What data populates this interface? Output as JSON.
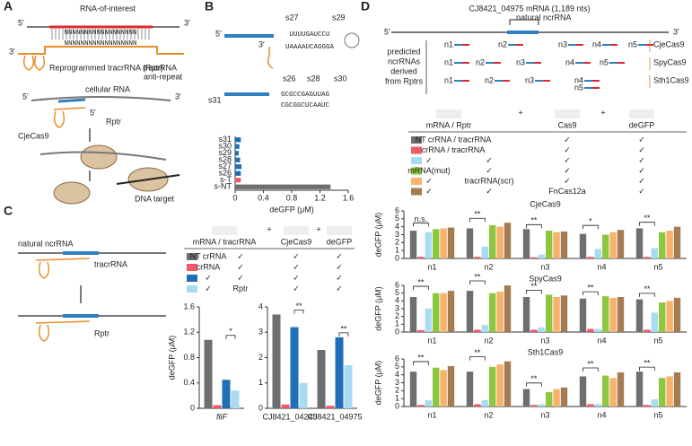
{
  "panel_a": {
    "label": "A",
    "rna": "RNA-of-interest",
    "p5": "5′",
    "p3": "3′",
    "seq_top": "NNNNNNNNNNNNNNNNNN",
    "seq_bot": "NNNNNNNNNNNNNNNNNN",
    "rptr_long": "Reprogrammed tracrRNA (Rptr)",
    "anti1": "tracrRNA",
    "anti2": "anti-repeat",
    "cellular": "cellular RNA",
    "rptr": "Rptr",
    "cas": "CjeCas9",
    "dna": "DNA target"
  },
  "panel_b": {
    "label": "B",
    "p5": "5′",
    "p3": "3′",
    "seq1": "UUUUGAUCCU",
    "seq2": "UAAAAUCAGGGA",
    "seq3": "GCGCCGAGUUAG",
    "seq4": "CGCGGCUCAAUC",
    "names": [
      "s27",
      "s29",
      "s26",
      "s28",
      "s30",
      "s31"
    ]
  },
  "panel_c": {
    "label": "C",
    "natural": "natural ncrRNA",
    "tracr": "tracrRNA",
    "rptr": "Rptr",
    "plus": "+",
    "columns": {
      "mrna": "mRNA / tracrRNA",
      "cas": "CjeCas9",
      "degfp": "deGFP"
    },
    "rows": [
      {
        "color": "#6d6e70",
        "rna": "NT crRNA",
        "tracr": "✓",
        "cas": "✓",
        "degfp": "✓"
      },
      {
        "color": "#ee5a66",
        "rna": "crRNA",
        "tracr": "✓",
        "cas": "✓",
        "degfp": "✓"
      },
      {
        "color": "#1f6fb8",
        "rna": "✓",
        "tracr": "✓",
        "cas": "✓",
        "degfp": "✓"
      },
      {
        "color": "#a9dbf2",
        "rna": "✓",
        "tracr": "Rptr",
        "cas": "✓",
        "degfp": "✓"
      }
    ]
  },
  "panel_d": {
    "label": "D",
    "gene": "CJ8421_04975 mRNA (1,189 nts)",
    "natural": "natural ncrRNA",
    "p5": "5′",
    "p3": "3′",
    "predicted": [
      "predicted",
      "ncrRNAs",
      "derived",
      "from Rptrs"
    ],
    "tracks": [
      {
        "name": "CjeCas9",
        "items": [
          "n1",
          "n2",
          "n3",
          "n4",
          "n5"
        ]
      },
      {
        "name": "SpyCas9",
        "items": [
          "n1",
          "n2",
          "n3",
          "n4",
          "n5"
        ]
      },
      {
        "name": "Sth1Cas9",
        "items": [
          "n1",
          "n2",
          "n3",
          "n4",
          "n5"
        ]
      }
    ],
    "plus": "+",
    "columns": {
      "mrna": "mRNA / Rptr",
      "cas": "Cas9",
      "degfp": "deGFP"
    },
    "rows": [
      {
        "color": "#6d6e70",
        "pair": "NT crRNA / tracrRNA",
        "cas": "✓",
        "degfp": "✓"
      },
      {
        "color": "#ee5a66",
        "pair": "crRNA / tracrRNA",
        "cas": "✓",
        "degfp": "✓"
      },
      {
        "color": "#a9dbf2",
        "mrna": "✓",
        "rptr": "✓",
        "cas": "✓",
        "degfp": "✓"
      },
      {
        "color": "#8dc63f",
        "mrna": "mRNA(mut)",
        "rptr": "✓",
        "cas": "✓",
        "degfp": "✓"
      },
      {
        "color": "#f7b26b",
        "mrna": "✓",
        "rptr": "tracrRNA(scr)",
        "cas": "✓",
        "degfp": "✓"
      },
      {
        "color": "#a57c52",
        "mrna": "✓",
        "rptr": "✓",
        "cas": "FnCas12a",
        "degfp": "✓"
      }
    ]
  },
  "chart_data": [
    {
      "type": "hbar",
      "categories": [
        "s31",
        "s30",
        "s29",
        "s28",
        "s27",
        "s26",
        "s-T",
        "s-NT"
      ],
      "values": [
        0.08,
        0.06,
        0.05,
        0.07,
        0.09,
        0.08,
        0.08,
        1.35
      ],
      "colors": [
        "#1f6fb8",
        "#1f6fb8",
        "#1f6fb8",
        "#1f6fb8",
        "#1f6fb8",
        "#1f6fb8",
        "#ee5a66",
        "#6d6e70"
      ],
      "xlim": [
        0,
        1.6
      ],
      "xticks": [
        0,
        0.4,
        0.8,
        1.2,
        1.6
      ],
      "xlabel": "deGFP (μM)"
    },
    {
      "type": "bar",
      "categories": [
        "fliF"
      ],
      "series": [
        {
          "name": "NT crRNA",
          "color": "#6d6e70",
          "values": [
            1.08
          ]
        },
        {
          "name": "crRNA",
          "color": "#ee5a66",
          "values": [
            0.05
          ]
        },
        {
          "color": "#1f6fb8",
          "values": [
            0.45
          ]
        },
        {
          "name": "Rptr",
          "color": "#a9dbf2",
          "values": [
            0.28
          ]
        }
      ],
      "ylim": [
        0,
        1.6
      ],
      "yticks": [
        0,
        0.4,
        0.8,
        1.2,
        1.6
      ],
      "ylabel": "deGFP (μM)",
      "significance": [
        "*"
      ]
    },
    {
      "type": "bar",
      "categories": [
        "CJ8421_04245",
        "CJ8421_04975"
      ],
      "series": [
        {
          "name": "NT crRNA",
          "color": "#6d6e70",
          "values": [
            3.7,
            2.3
          ]
        },
        {
          "name": "crRNA",
          "color": "#ee5a66",
          "values": [
            0.15,
            0.1
          ]
        },
        {
          "color": "#1f6fb8",
          "values": [
            3.2,
            2.8
          ]
        },
        {
          "name": "Rptr",
          "color": "#a9dbf2",
          "values": [
            1.0,
            1.7
          ]
        }
      ],
      "ylim": [
        0,
        4
      ],
      "yticks": [
        0,
        1,
        2,
        3,
        4
      ],
      "significance": [
        "**",
        "**"
      ]
    },
    {
      "type": "bar",
      "title": "CjeCas9",
      "title_color": "#c98a3a",
      "categories": [
        "n1",
        "n2",
        "n3",
        "n4",
        "n5"
      ],
      "series": [
        {
          "color": "#6d6e70",
          "values": [
            3.5,
            3.8,
            3.7,
            3.1,
            3.8
          ]
        },
        {
          "color": "#ee5a66",
          "values": [
            0.2,
            0.2,
            0.15,
            0.2,
            0.2
          ]
        },
        {
          "color": "#a9dbf2",
          "values": [
            3.3,
            1.5,
            0.5,
            1.2,
            1.3
          ]
        },
        {
          "color": "#8dc63f",
          "values": [
            3.7,
            4.2,
            3.5,
            3.0,
            3.3
          ]
        },
        {
          "color": "#f7b26b",
          "values": [
            3.8,
            4.0,
            3.3,
            3.3,
            3.5
          ]
        },
        {
          "color": "#a57c52",
          "values": [
            3.9,
            4.5,
            3.4,
            3.6,
            4.0
          ]
        }
      ],
      "ylim": [
        0,
        6
      ],
      "yticks": [
        0,
        1,
        2,
        3,
        4,
        5,
        6
      ],
      "ylabel": "deGFP (μM)",
      "significance": [
        "n.s.",
        "**",
        "**",
        "*",
        "**"
      ]
    },
    {
      "type": "bar",
      "title": "SpyCas9",
      "title_color": "#c98a3a",
      "categories": [
        "n1",
        "n2",
        "n3",
        "n4",
        "n5"
      ],
      "series": [
        {
          "color": "#6d6e70",
          "values": [
            4.5,
            5.3,
            4.5,
            4.3,
            4.2
          ]
        },
        {
          "color": "#ee5a66",
          "values": [
            0.25,
            0.3,
            0.3,
            0.4,
            0.3
          ]
        },
        {
          "color": "#a9dbf2",
          "values": [
            3.0,
            0.9,
            0.6,
            0.4,
            2.5
          ]
        },
        {
          "color": "#8dc63f",
          "values": [
            5.0,
            5.0,
            4.8,
            4.6,
            3.8
          ]
        },
        {
          "color": "#f7b26b",
          "values": [
            5.0,
            5.2,
            4.5,
            4.4,
            4.0
          ]
        },
        {
          "color": "#a57c52",
          "values": [
            5.3,
            6.0,
            4.7,
            4.5,
            4.4
          ]
        }
      ],
      "ylim": [
        0,
        6
      ],
      "yticks": [
        0,
        1,
        2,
        3,
        4,
        5,
        6
      ],
      "ylabel": "deGFP (μM)",
      "significance": [
        "**",
        "**",
        "**",
        "**",
        "**"
      ]
    },
    {
      "type": "bar",
      "title": "Sth1Cas9",
      "title_color": "#c98a3a",
      "categories": [
        "n1",
        "n2",
        "n3",
        "n4",
        "n5"
      ],
      "series": [
        {
          "color": "#6d6e70",
          "values": [
            4.4,
            4.4,
            2.2,
            3.8,
            4.4
          ]
        },
        {
          "color": "#ee5a66",
          "values": [
            0.2,
            0.3,
            0.2,
            0.3,
            0.2
          ]
        },
        {
          "color": "#a9dbf2",
          "values": [
            0.8,
            0.8,
            0.3,
            0.3,
            0.9
          ]
        },
        {
          "color": "#8dc63f",
          "values": [
            4.9,
            5.0,
            1.8,
            3.9,
            3.6
          ]
        },
        {
          "color": "#f7b26b",
          "values": [
            4.6,
            5.3,
            2.2,
            3.6,
            3.8
          ]
        },
        {
          "color": "#a57c52",
          "values": [
            5.1,
            5.7,
            2.4,
            4.3,
            4.3
          ]
        }
      ],
      "ylim": [
        0,
        6
      ],
      "yticks": [
        0,
        1,
        2,
        3,
        4,
        5,
        6
      ],
      "ylabel": "deGFP (μM)",
      "significance": [
        "**",
        "**",
        "**",
        "**",
        "**"
      ]
    }
  ]
}
